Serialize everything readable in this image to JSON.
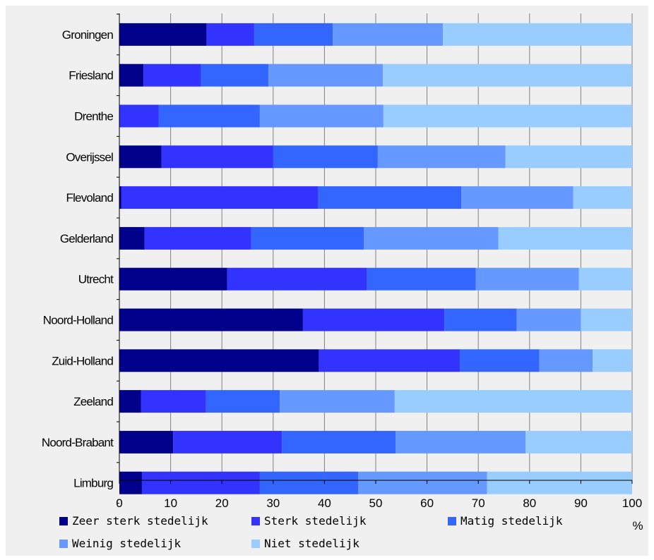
{
  "chart_data": {
    "type": "bar",
    "orientation": "horizontal",
    "stacked": true,
    "categories": [
      "Groningen",
      "Friesland",
      "Drenthe",
      "Overijssel",
      "Flevoland",
      "Gelderland",
      "Utrecht",
      "Noord-Holland",
      "Zuid-Holland",
      "Zeeland",
      "Noord-Brabant",
      "Limburg"
    ],
    "series": [
      {
        "name": "Zeer sterk stedelijk",
        "color": "#00008b",
        "values": [
          17,
          4.7,
          0,
          8.2,
          0.4,
          4.9,
          21,
          35.8,
          38.9,
          4.2,
          10.5,
          4.4
        ]
      },
      {
        "name": "Sterk stedelijk",
        "color": "#3333ff",
        "values": [
          9.3,
          11.2,
          7.7,
          21.8,
          38.4,
          20.8,
          27.3,
          27.6,
          27.5,
          12.7,
          21.2,
          23
        ]
      },
      {
        "name": "Matig stedelijk",
        "color": "#3366ff",
        "values": [
          15.3,
          13.2,
          19.7,
          20.4,
          27.9,
          22,
          21.2,
          14.1,
          15.5,
          14.4,
          22.2,
          19.2
        ]
      },
      {
        "name": "Weinig stedelijk",
        "color": "#6699ff",
        "values": [
          21.5,
          22.3,
          24.1,
          24.9,
          21.8,
          26.2,
          20.1,
          12.5,
          10.4,
          22.4,
          25.3,
          25.1
        ]
      },
      {
        "name": "Niet stedelijk",
        "color": "#99ccff",
        "values": [
          36.9,
          48.6,
          48.5,
          24.7,
          11.5,
          26.1,
          10.4,
          10,
          7.7,
          46.3,
          20.8,
          28.3
        ]
      }
    ],
    "xlim": [
      0,
      100
    ],
    "xticks": [
      0,
      10,
      20,
      30,
      40,
      50,
      60,
      70,
      80,
      90,
      100
    ],
    "unit_label": "%",
    "grid": true,
    "legend_position": "bottom"
  }
}
